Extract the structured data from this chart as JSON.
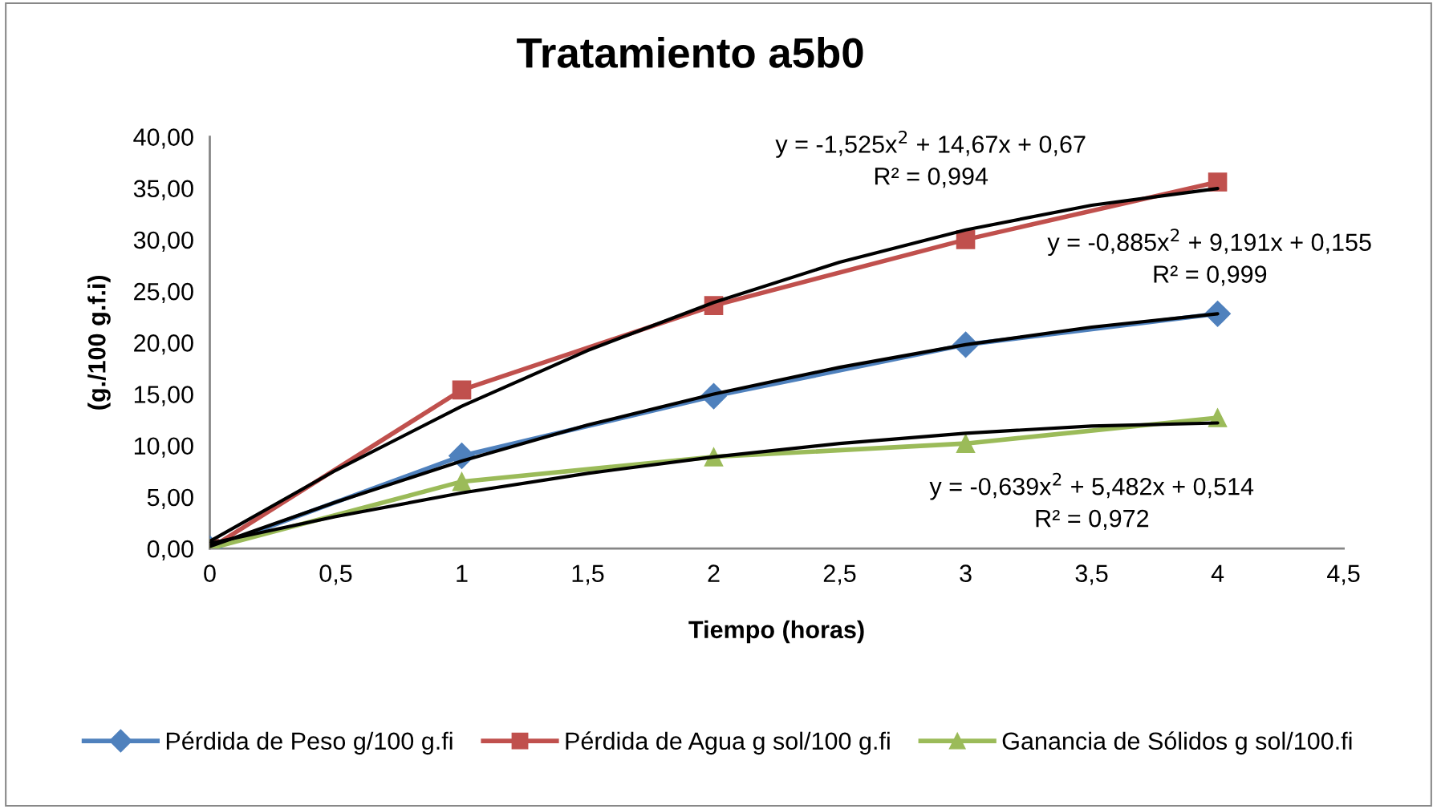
{
  "chart_data": {
    "type": "line",
    "title": "Tratamiento a5b0",
    "xlabel": "Tiempo (horas)",
    "ylabel": "(g./100 g.f.i)",
    "x": [
      0,
      1,
      2,
      3,
      4
    ],
    "series": [
      {
        "name": "Pérdida de Peso g/100 g.fi",
        "color": "#4f81bd",
        "marker": "diamond",
        "values": [
          0,
          9.0,
          14.8,
          19.8,
          22.8
        ]
      },
      {
        "name": "Pérdida de Agua g sol/100 g.fi",
        "color": "#c0504d",
        "marker": "square",
        "values": [
          0,
          15.4,
          23.6,
          30.0,
          35.6
        ]
      },
      {
        "name": "Ganancia de Sólidos g sol/100.fi",
        "color": "#9bbb59",
        "marker": "triangle",
        "values": [
          0,
          6.5,
          8.9,
          10.2,
          12.7
        ]
      },
      {
        "color": "#000000",
        "marker": "none",
        "x": [
          0,
          0.5,
          1,
          1.5,
          2,
          2.5,
          3,
          3.5,
          4
        ],
        "values": [
          0.7,
          7.6,
          13.82,
          19.24,
          23.9,
          27.81,
          30.95,
          33.34,
          34.97
        ]
      },
      {
        "color": "#000000",
        "marker": "none",
        "x": [
          0,
          0.5,
          1,
          1.5,
          2,
          2.5,
          3,
          3.5,
          4
        ],
        "values": [
          0.2,
          4.5,
          8.5,
          12.0,
          15.0,
          17.6,
          19.8,
          21.5,
          22.8
        ]
      },
      {
        "color": "#000000",
        "marker": "none",
        "x": [
          0,
          0.5,
          1,
          1.5,
          2,
          2.5,
          3,
          3.5,
          4
        ],
        "values": [
          0.5,
          3.1,
          5.4,
          7.3,
          8.9,
          10.2,
          11.2,
          11.9,
          12.2
        ]
      }
    ],
    "annotations": [
      "y = -1,525x$^{2}$ + 14,67x + 0,67\nR² = 0,994",
      "y = -0,885x$^{2}$ + 9,191x + 0,155\nR² = 0,999",
      "y = -0,639x$^{2}$ + 5,482x + 0,514\nR² = 0,972"
    ],
    "xlim": [
      0,
      4.5
    ],
    "ylim": [
      0,
      40
    ],
    "xticks": [
      0,
      {
        "value": 0.5,
        "label": "0,5"
      },
      1,
      {
        "value": 1.5,
        "label": "1,5"
      },
      2,
      {
        "value": 2.5,
        "label": "2,5"
      },
      3,
      {
        "value": 3.5,
        "label": "3,5"
      },
      4,
      {
        "value": 4.5,
        "label": "4,5"
      }
    ],
    "yticks": [
      {
        "value": 0,
        "label": "0,00"
      },
      {
        "value": 5,
        "label": "5,00"
      },
      {
        "value": 10,
        "label": "10,00"
      },
      {
        "value": 15,
        "label": "15,00"
      },
      {
        "value": 20,
        "label": "20,00"
      },
      {
        "value": 25,
        "label": "25,00"
      },
      {
        "value": 30,
        "label": "30,00"
      },
      {
        "value": 35,
        "label": "35,00"
      },
      {
        "value": 40,
        "label": "40,00"
      }
    ],
    "grid": false,
    "legend": "bottom",
    "line_style": "solid"
  }
}
